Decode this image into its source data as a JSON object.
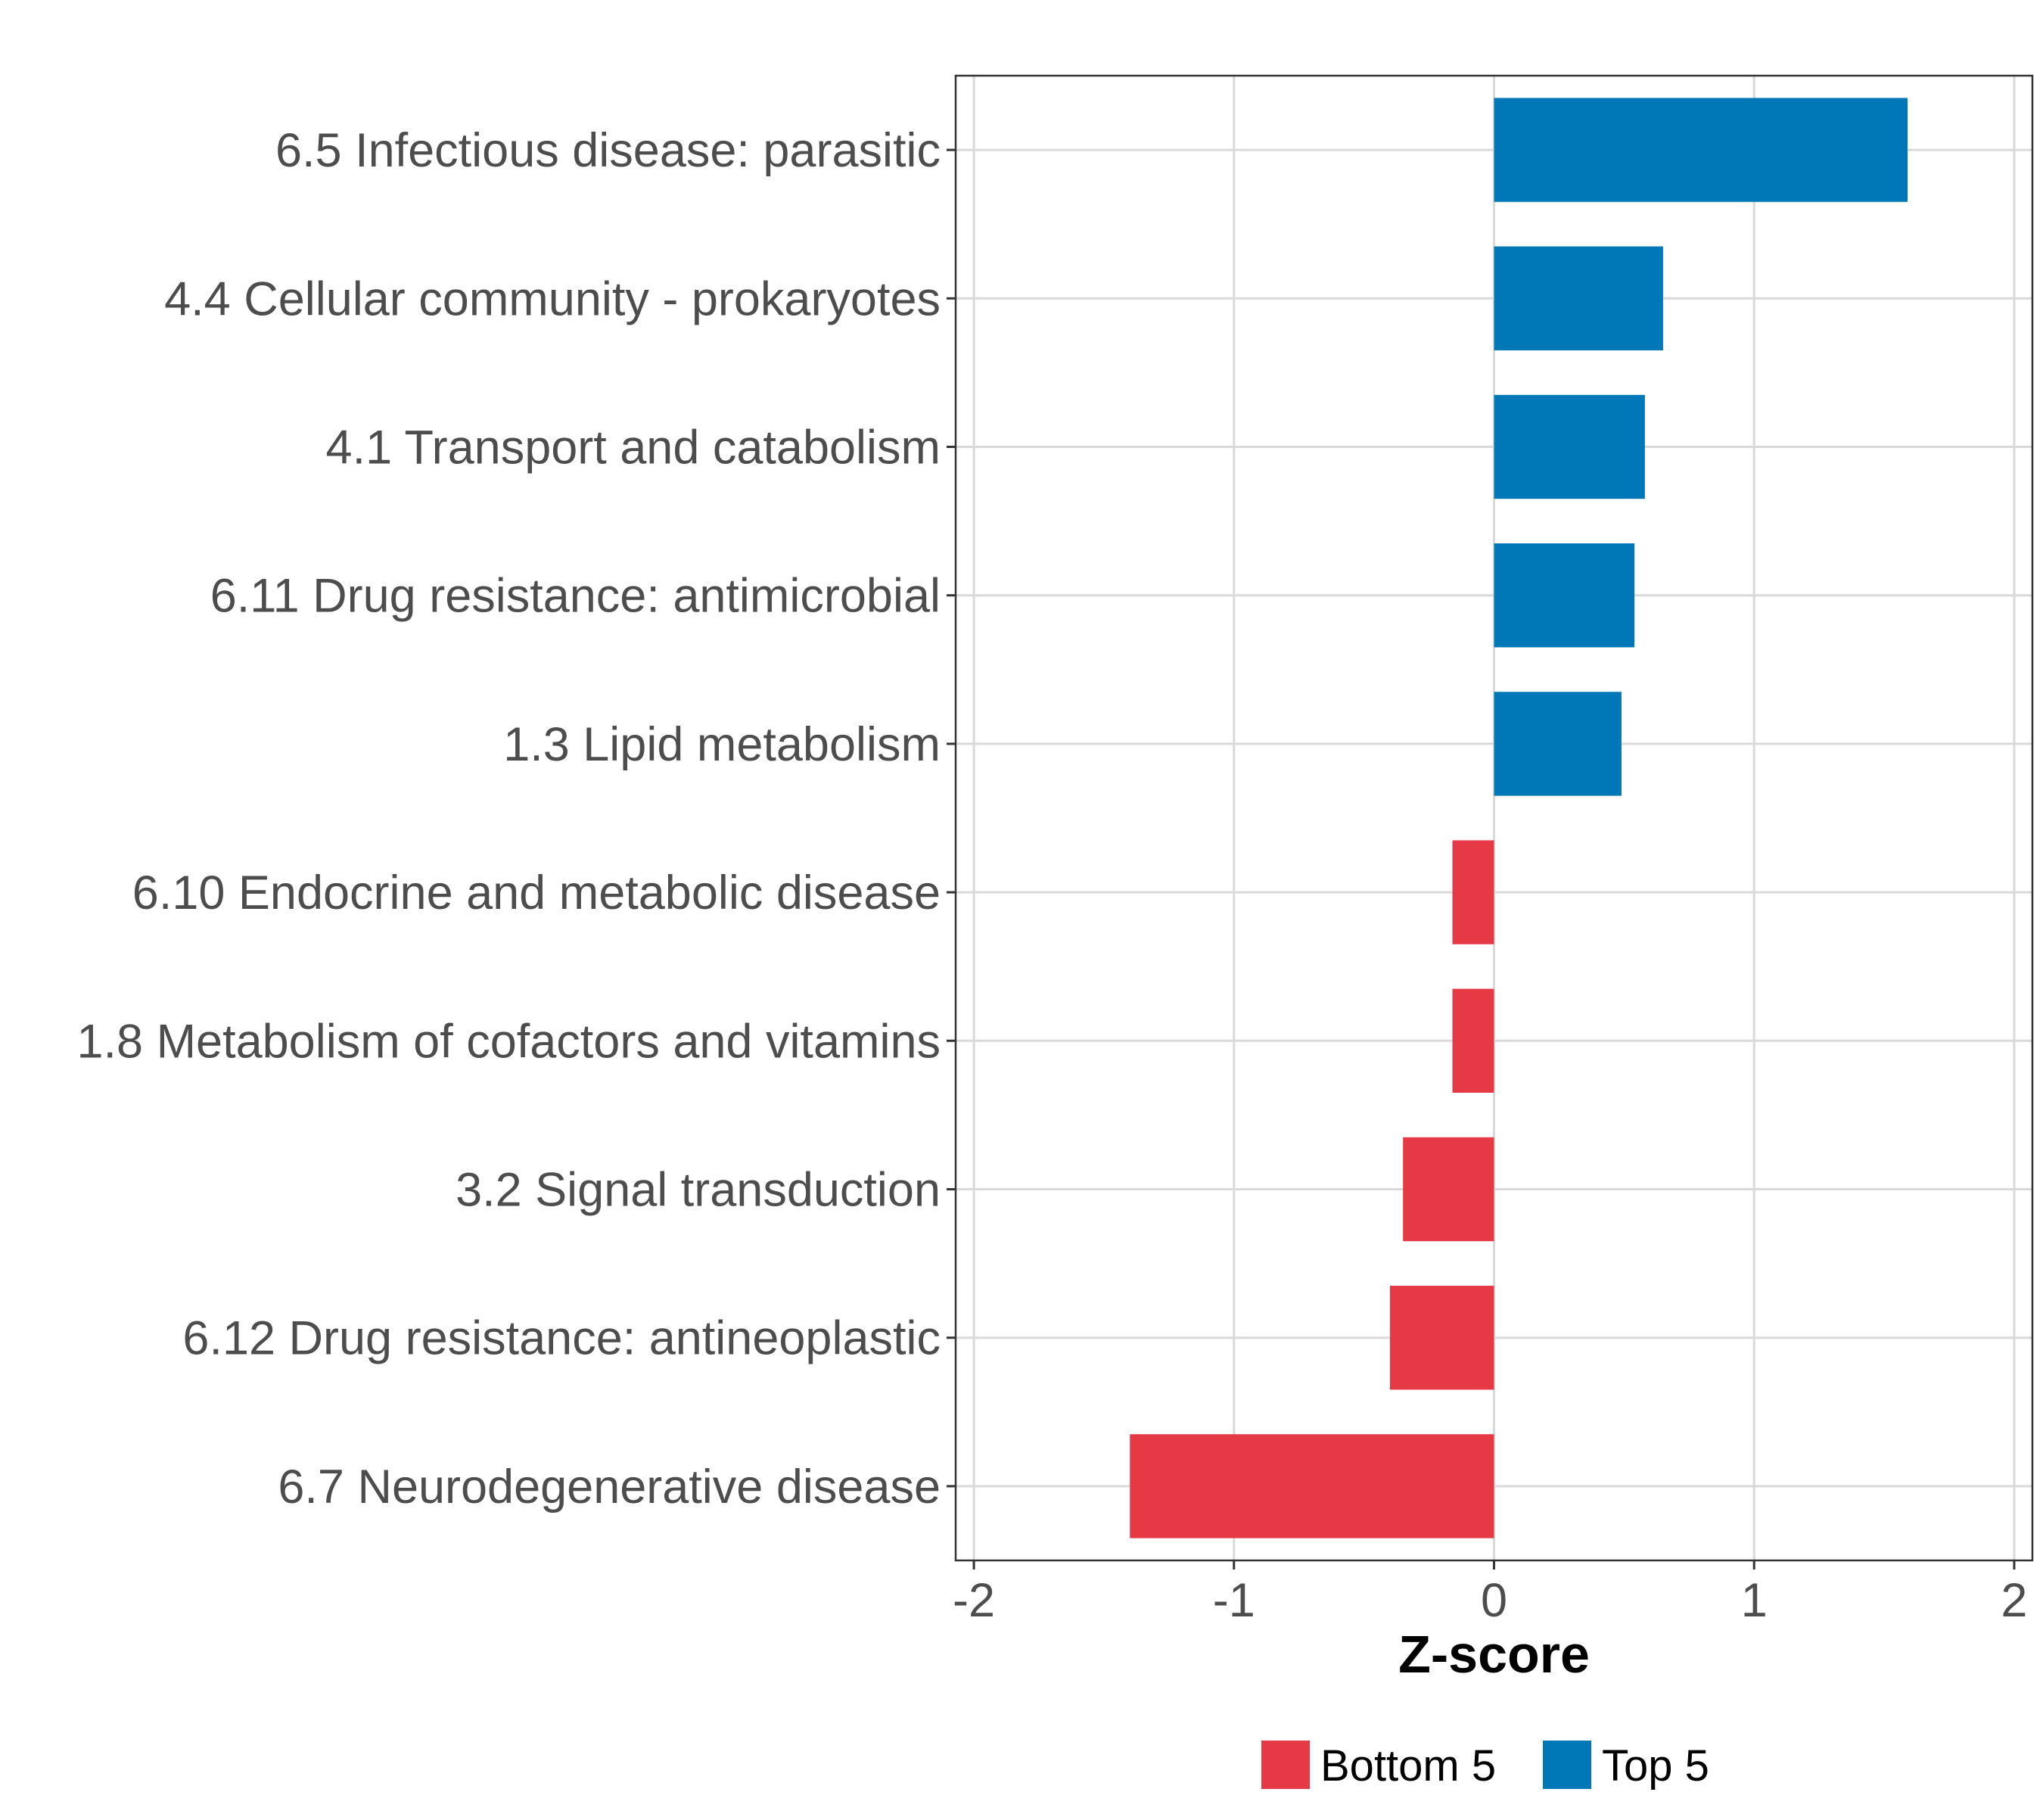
{
  "chart_data": {
    "type": "bar",
    "orientation": "horizontal",
    "title": "",
    "xlabel": "Z-score",
    "ylabel": "",
    "xlim": [
      -2.07,
      2.07
    ],
    "xticks": [
      -2,
      -1,
      0,
      1,
      2
    ],
    "xtick_labels": [
      "-2",
      "-1",
      "0",
      "1",
      "2"
    ],
    "grid": true,
    "legend_position": "bottom",
    "categories": [
      "6.5 Infectious disease: parasitic",
      "4.4 Cellular community - prokaryotes",
      "4.1 Transport and catabolism",
      "6.11 Drug resistance: antimicrobial",
      "1.3 Lipid metabolism",
      "6.10 Endocrine and metabolic disease",
      "1.8 Metabolism of cofactors and vitamins",
      "3.2 Signal transduction",
      "6.12 Drug resistance: antineoplastic",
      "6.7 Neurodegenerative disease"
    ],
    "values": [
      1.59,
      0.65,
      0.58,
      0.54,
      0.49,
      -0.16,
      -0.16,
      -0.35,
      -0.4,
      -1.4
    ],
    "groups": [
      "Top 5",
      "Top 5",
      "Top 5",
      "Top 5",
      "Top 5",
      "Bottom 5",
      "Bottom 5",
      "Bottom 5",
      "Bottom 5",
      "Bottom 5"
    ],
    "legend": [
      {
        "name": "Bottom 5",
        "color": "#E63946"
      },
      {
        "name": "Top 5",
        "color": "#0077B6"
      }
    ]
  }
}
